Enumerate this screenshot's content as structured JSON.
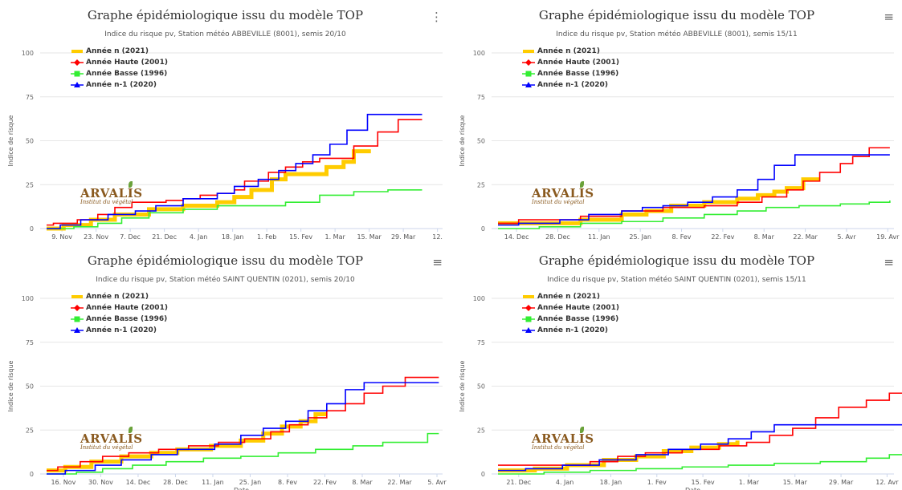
{
  "panels": [
    {
      "title": "Graphe épidémiologique issu du modèle TOP",
      "subtitle": "Indice du risque pv, Station météo ABBEVILLE (8001), semis 20/10",
      "menu_icon": "kebab-menu-icon",
      "menu_symbol": "⋮",
      "logo": "ARVALIS",
      "logo_sub": "Institut du végétal",
      "ylabel": "Indice de risque",
      "xlabel": "",
      "legend": [
        "Année n (2021)",
        "Année Haute (2001)",
        "Année Basse (1996)",
        "Année n-1 (2020)"
      ]
    },
    {
      "title": "Graphe épidémiologique issu du modèle TOP",
      "subtitle": "Indice du risque pv, Station météo ABBEVILLE (8001), semis 15/11",
      "menu_icon": "hamburger-menu-icon",
      "menu_symbol": "≡",
      "logo": "ARVALIS",
      "logo_sub": "Institut du végétal",
      "ylabel": "Indice de risque",
      "xlabel": "",
      "legend": [
        "Année n (2021)",
        "Année Haute (2001)",
        "Année Basse (1996)",
        "Année n-1 (2020)"
      ]
    },
    {
      "title": "Graphe épidémiologique issu du modèle TOP",
      "subtitle": "Indice du risque pv, Station météo SAINT QUENTIN (0201), semis 20/10",
      "menu_icon": "hamburger-menu-icon",
      "menu_symbol": "≡",
      "logo": "ARVALIS",
      "logo_sub": "Institut du végétal",
      "ylabel": "Indice de risque",
      "xlabel": "Date",
      "legend": [
        "Année n (2021)",
        "Année Haute (2001)",
        "Année Basse (1996)",
        "Année n-1 (2020)"
      ]
    },
    {
      "title": "Graphe épidémiologique issu du modèle TOP",
      "subtitle": "Indice du risque pv, Station météo SAINT QUENTIN (0201), semis 15/11",
      "menu_icon": "hamburger-menu-icon",
      "menu_symbol": "≡",
      "logo": "ARVALIS",
      "logo_sub": "Institut du végétal",
      "ylabel": "Indice de risque",
      "xlabel": "Date",
      "legend": [
        "Année n (2021)",
        "Année Haute (2001)",
        "Année Basse (1996)",
        "Année n-1 (2020)"
      ]
    }
  ],
  "series_colors": [
    "#ffcc00",
    "#ff0000",
    "#33ee33",
    "#0000ff"
  ],
  "series_markers": [
    "bar",
    "diamond",
    "square",
    "triangle"
  ],
  "chart_data": [
    {
      "type": "line",
      "ylim": [
        0,
        100
      ],
      "yticks": [
        0,
        25,
        50,
        75,
        100
      ],
      "grid": "horizontal",
      "legend_position": "top-left",
      "xticks": [
        "9. Nov",
        "23. Nov",
        "7. Dec",
        "21. Dec",
        "4. Jan",
        "18. Jan",
        "1. Feb",
        "15. Fev",
        "1. Mar",
        "15. Mar",
        "29. Mar",
        "12."
      ],
      "series": [
        {
          "name": "Année n (2021)",
          "x": [
            0.0,
            0.5,
            1.3,
            2.0,
            3.0,
            4.0,
            5.0,
            5.5,
            6.0,
            6.6,
            7.0,
            7.8,
            8.2,
            8.7,
            9.0,
            9.5
          ],
          "y": [
            0,
            2,
            5,
            8,
            11,
            13,
            15,
            18,
            22,
            28,
            31,
            31,
            35,
            38,
            44,
            44
          ]
        },
        {
          "name": "Année Haute (2001)",
          "x": [
            0.0,
            0.2,
            0.9,
            1.5,
            2.0,
            2.5,
            3.5,
            4.0,
            4.5,
            5.0,
            5.5,
            5.8,
            6.5,
            7.0,
            7.5,
            8.0,
            9.0,
            9.7,
            10.3,
            11.0
          ],
          "y": [
            2,
            3,
            5,
            8,
            12,
            15,
            16,
            17,
            19,
            20,
            22,
            27,
            32,
            35,
            38,
            40,
            47,
            55,
            62,
            62
          ]
        },
        {
          "name": "Année Basse (1996)",
          "x": [
            0.0,
            0.8,
            1.5,
            2.2,
            3.0,
            4.0,
            5.0,
            7.0,
            8.0,
            9.0,
            10.0,
            11.0
          ],
          "y": [
            0,
            1,
            3,
            6,
            9,
            11,
            13,
            15,
            19,
            21,
            22,
            22
          ]
        },
        {
          "name": "Année n-1 (2020)",
          "x": [
            0.0,
            0.4,
            1.0,
            1.8,
            2.6,
            3.2,
            4.0,
            5.0,
            5.5,
            6.2,
            6.8,
            7.3,
            7.8,
            8.3,
            8.8,
            9.4,
            10.2,
            11.0
          ],
          "y": [
            0,
            2,
            5,
            8,
            10,
            13,
            17,
            20,
            24,
            28,
            33,
            37,
            42,
            48,
            56,
            65,
            65,
            65
          ]
        }
      ]
    },
    {
      "type": "line",
      "ylim": [
        0,
        100
      ],
      "yticks": [
        0,
        25,
        50,
        75,
        100
      ],
      "grid": "horizontal",
      "legend_position": "top-left",
      "xticks": [
        "14. Dec",
        "28. Dec",
        "11. Jan",
        "25. Jan",
        "8. Fev",
        "22. Fev",
        "8. Mar",
        "22. Mar",
        "5. Avr",
        "19. Avr"
      ],
      "series": [
        {
          "name": "Année n (2021)",
          "x": [
            0.0,
            1.0,
            2.0,
            3.0,
            3.6,
            4.2,
            5.0,
            5.8,
            6.3,
            6.7,
            7.0,
            7.4,
            7.8
          ],
          "y": [
            3,
            3,
            5,
            8,
            10,
            13,
            15,
            17,
            19,
            21,
            23,
            28,
            28
          ]
        },
        {
          "name": "Année Haute (2001)",
          "x": [
            0.0,
            0.5,
            1.3,
            2.0,
            3.0,
            4.0,
            5.0,
            5.8,
            6.4,
            7.0,
            7.4,
            7.8,
            8.3,
            8.6,
            9.0,
            9.5
          ],
          "y": [
            3,
            5,
            5,
            7,
            10,
            12,
            13,
            15,
            18,
            22,
            27,
            32,
            37,
            41,
            46,
            46
          ]
        },
        {
          "name": "Année Basse (1996)",
          "x": [
            0.0,
            1.0,
            2.0,
            3.0,
            4.0,
            5.0,
            5.8,
            6.5,
            7.3,
            8.3,
            9.0,
            9.5
          ],
          "y": [
            0,
            1,
            3,
            4,
            6,
            8,
            10,
            12,
            13,
            14,
            15,
            16
          ]
        },
        {
          "name": "Année n-1 (2020)",
          "x": [
            0.0,
            0.5,
            1.5,
            2.2,
            3.0,
            3.5,
            4.0,
            4.6,
            5.2,
            5.8,
            6.3,
            6.7,
            7.2,
            8.0,
            9.5
          ],
          "y": [
            2,
            3,
            5,
            8,
            10,
            12,
            13,
            15,
            18,
            22,
            28,
            36,
            42,
            42,
            42
          ]
        }
      ]
    },
    {
      "type": "line",
      "ylim": [
        0,
        100
      ],
      "yticks": [
        0,
        25,
        50,
        75,
        100
      ],
      "grid": "horizontal",
      "legend_position": "top-left",
      "xlabel": "Date",
      "xticks": [
        "16. Nov",
        "30. Nov",
        "14. Dec",
        "28. Dec",
        "11. Jan",
        "25. Jan",
        "8. Fev",
        "22. Fev",
        "8. Mar",
        "22. Mar",
        "5. Avr"
      ],
      "series": [
        {
          "name": "Année n (2021)",
          "x": [
            0.0,
            0.5,
            1.2,
            2.0,
            2.8,
            3.5,
            4.4,
            5.2,
            5.8,
            6.3,
            6.8,
            7.2,
            7.5
          ],
          "y": [
            2,
            4,
            7,
            10,
            12,
            14,
            16,
            19,
            23,
            27,
            30,
            34,
            34
          ]
        },
        {
          "name": "Année Haute (2001)",
          "x": [
            0.0,
            0.3,
            0.9,
            1.5,
            2.2,
            3.0,
            3.8,
            4.6,
            5.3,
            6.0,
            6.5,
            7.0,
            7.5,
            8.0,
            8.5,
            9.0,
            9.6,
            10.5
          ],
          "y": [
            2,
            4,
            7,
            10,
            12,
            14,
            16,
            18,
            20,
            24,
            28,
            32,
            36,
            40,
            46,
            50,
            55,
            55
          ]
        },
        {
          "name": "Année Basse (1996)",
          "x": [
            0.0,
            0.8,
            1.5,
            2.3,
            3.2,
            4.2,
            5.2,
            6.2,
            7.2,
            8.2,
            9.0,
            10.2,
            10.5
          ],
          "y": [
            0,
            1,
            3,
            5,
            7,
            9,
            10,
            12,
            14,
            16,
            18,
            23,
            23
          ]
        },
        {
          "name": "Année n-1 (2020)",
          "x": [
            0.0,
            0.5,
            1.3,
            2.0,
            2.8,
            3.5,
            4.5,
            5.2,
            5.8,
            6.4,
            7.0,
            7.5,
            8.0,
            8.5,
            9.0,
            10.5
          ],
          "y": [
            0,
            2,
            5,
            8,
            11,
            14,
            17,
            22,
            26,
            30,
            36,
            40,
            48,
            52,
            52,
            52
          ]
        }
      ]
    },
    {
      "type": "line",
      "ylim": [
        0,
        100
      ],
      "yticks": [
        0,
        25,
        50,
        75,
        100
      ],
      "grid": "horizontal",
      "legend_position": "top-left",
      "xlabel": "Date",
      "xticks": [
        "21. Dec",
        "4. Jan",
        "18. Jan",
        "1. Fev",
        "15. Fev",
        "1. Mar",
        "15. Mar",
        "29. Mar",
        "12. Avr"
      ],
      "series": [
        {
          "name": "Année n (2021)",
          "x": [
            0.0,
            0.8,
            1.5,
            2.3,
            3.0,
            3.6,
            4.2,
            4.8,
            5.2
          ],
          "y": [
            2,
            3,
            5,
            8,
            10,
            13,
            15,
            17,
            19
          ]
        },
        {
          "name": "Année Haute (2001)",
          "x": [
            0.0,
            1.0,
            2.0,
            2.6,
            3.2,
            4.0,
            4.8,
            5.4,
            5.9,
            6.4,
            6.9,
            7.4,
            8.0,
            8.5,
            9.0
          ],
          "y": [
            5,
            5,
            7,
            10,
            12,
            14,
            16,
            18,
            22,
            26,
            32,
            38,
            42,
            46,
            46
          ]
        },
        {
          "name": "Année Basse (1996)",
          "x": [
            0.0,
            1.0,
            2.0,
            3.0,
            4.0,
            5.0,
            6.0,
            7.0,
            8.0,
            8.5,
            9.0
          ],
          "y": [
            0,
            1,
            2,
            3,
            4,
            5,
            6,
            7,
            9,
            11,
            11
          ]
        },
        {
          "name": "Année n-1 (2020)",
          "x": [
            0.0,
            0.6,
            1.4,
            2.2,
            3.0,
            3.7,
            4.4,
            5.0,
            5.5,
            6.0,
            7.0,
            9.0
          ],
          "y": [
            2,
            3,
            5,
            8,
            11,
            14,
            17,
            20,
            24,
            28,
            28,
            28
          ]
        }
      ]
    }
  ]
}
